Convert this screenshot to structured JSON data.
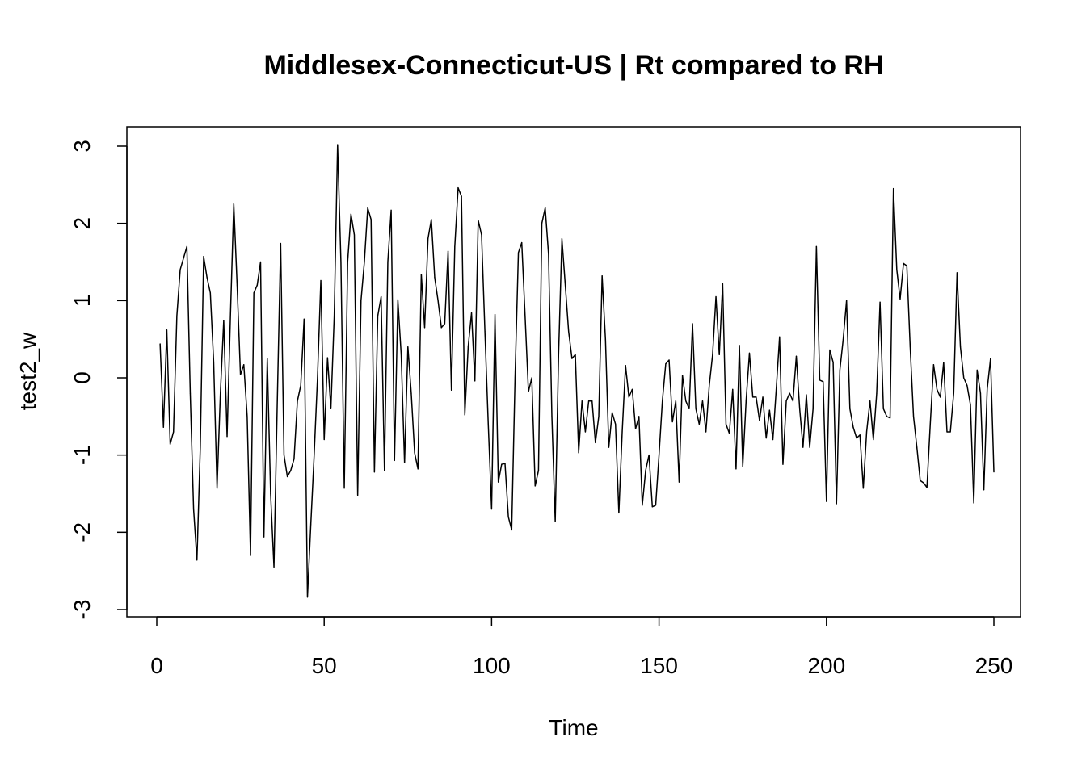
{
  "chart_data": {
    "type": "line",
    "title": "Middlesex-Connecticut-US | Rt compared to RH",
    "xlabel": "Time",
    "ylabel": "test2_w",
    "xlim": [
      0,
      250
    ],
    "ylim": [
      -3,
      3
    ],
    "x_ticks": [
      0,
      50,
      100,
      150,
      200,
      250
    ],
    "x_tick_labels": [
      "0",
      "50",
      "100",
      "150",
      "200",
      "250"
    ],
    "y_ticks": [
      -3,
      -2,
      -1,
      0,
      1,
      2,
      3
    ],
    "y_tick_labels": [
      "-3",
      "-2",
      "-1",
      "0",
      "1",
      "2",
      "3"
    ],
    "grid": false,
    "series": [
      {
        "color": "#000000",
        "x_start": 1,
        "values": [
          0.44,
          -0.64,
          0.62,
          -0.86,
          -0.7,
          0.8,
          1.4,
          1.55,
          1.7,
          -0.2,
          -1.7,
          -2.36,
          -0.9,
          1.57,
          1.3,
          1.1,
          0.2,
          -1.43,
          -0.2,
          0.74,
          -0.76,
          0.8,
          2.25,
          1.2,
          0.04,
          0.17,
          -0.5,
          -2.3,
          1.1,
          1.2,
          1.5,
          -2.06,
          0.25,
          -1.5,
          -2.45,
          -0.3,
          1.74,
          -1.0,
          -1.28,
          -1.2,
          -1.05,
          -0.3,
          -0.1,
          0.76,
          -2.84,
          -1.9,
          -1.0,
          0.0,
          1.26,
          -0.8,
          0.26,
          -0.4,
          0.8,
          3.02,
          1.5,
          -1.43,
          1.5,
          2.12,
          1.85,
          -1.52,
          1.0,
          1.5,
          2.2,
          2.05,
          -1.22,
          0.8,
          1.05,
          -1.2,
          1.5,
          2.17,
          -1.07,
          1.01,
          0.3,
          -1.1,
          0.4,
          -0.2,
          -0.97,
          -1.18,
          1.34,
          0.65,
          1.8,
          2.05,
          1.3,
          1.0,
          0.65,
          0.7,
          1.64,
          -0.16,
          1.7,
          2.46,
          2.35,
          -0.48,
          0.4,
          0.84,
          -0.04,
          2.04,
          1.85,
          0.6,
          -0.6,
          -1.7,
          0.82,
          -1.35,
          -1.12,
          -1.11,
          -1.8,
          -1.97,
          0.0,
          1.62,
          1.75,
          0.8,
          -0.18,
          0.0,
          -1.4,
          -1.2,
          2.0,
          2.2,
          1.6,
          -0.5,
          -1.86,
          0.3,
          1.8,
          1.2,
          0.6,
          0.25,
          0.3,
          -0.97,
          -0.3,
          -0.7,
          -0.3,
          -0.3,
          -0.84,
          -0.5,
          1.32,
          0.5,
          -0.9,
          -0.45,
          -0.6,
          -1.75,
          -0.7,
          0.16,
          -0.25,
          -0.15,
          -0.66,
          -0.5,
          -1.65,
          -1.2,
          -1.0,
          -1.67,
          -1.65,
          -1.0,
          -0.3,
          0.18,
          0.23,
          -0.57,
          -0.3,
          -1.35,
          0.03,
          -0.3,
          -0.4,
          0.7,
          -0.4,
          -0.6,
          -0.3,
          -0.7,
          -0.1,
          0.3,
          1.05,
          0.3,
          1.22,
          -0.6,
          -0.72,
          -0.15,
          -1.18,
          0.42,
          -1.15,
          -0.3,
          0.32,
          -0.25,
          -0.25,
          -0.55,
          -0.25,
          -0.78,
          -0.42,
          -0.8,
          -0.15,
          0.53,
          -1.12,
          -0.3,
          -0.2,
          -0.3,
          0.28,
          -0.4,
          -0.9,
          -0.22,
          -0.9,
          -0.4,
          1.7,
          -0.03,
          -0.05,
          -1.6,
          0.36,
          0.2,
          -1.63,
          0.1,
          0.5,
          1.0,
          -0.4,
          -0.64,
          -0.78,
          -0.74,
          -1.43,
          -0.7,
          -0.3,
          -0.8,
          -0.2,
          0.98,
          -0.4,
          -0.5,
          -0.52,
          2.45,
          1.4,
          1.02,
          1.48,
          1.45,
          0.4,
          -0.5,
          -0.9,
          -1.33,
          -1.36,
          -1.42,
          -0.6,
          0.17,
          -0.15,
          -0.25,
          0.2,
          -0.7,
          -0.7,
          -0.2,
          1.36,
          0.4,
          0.0,
          -0.1,
          -0.35,
          -1.62,
          0.1,
          -0.2,
          -1.45,
          -0.15,
          0.25,
          -1.22
        ]
      }
    ]
  }
}
